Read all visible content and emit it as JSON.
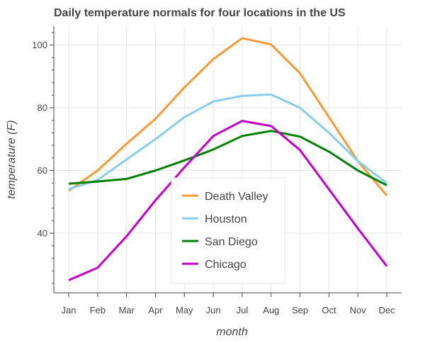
{
  "chart_data": {
    "type": "line",
    "title": "Daily temperature normals for four locations in the US",
    "xlabel": "month",
    "ylabel": "temperature (F)",
    "categories": [
      "Jan",
      "Feb",
      "Mar",
      "Apr",
      "May",
      "Jun",
      "Jul",
      "Aug",
      "Sep",
      "Oct",
      "Nov",
      "Dec"
    ],
    "ylim": [
      21,
      106
    ],
    "yticks": [
      40,
      60,
      80,
      100
    ],
    "grid": true,
    "legend_position": "bottom-center",
    "series": [
      {
        "name": "Death Valley",
        "color": "#f89a3a",
        "values": [
          53.5,
          60,
          68.5,
          76.5,
          86.5,
          95.5,
          102.2,
          100.2,
          91,
          77,
          63,
          52
        ]
      },
      {
        "name": "Houston",
        "color": "#87ceeb",
        "values": [
          54,
          57,
          63.5,
          70,
          77,
          82,
          83.8,
          84.2,
          80,
          72,
          63,
          56
        ]
      },
      {
        "name": "San Diego",
        "color": "#008000",
        "values": [
          55.8,
          56.5,
          57.3,
          60,
          63.2,
          66.7,
          71,
          72.6,
          70.8,
          66,
          60,
          55.3
        ]
      },
      {
        "name": "Chicago",
        "color": "#c000c8",
        "values": [
          25,
          29,
          39,
          50.5,
          61,
          71,
          75.8,
          74.2,
          66.5,
          54,
          41.5,
          29.5
        ]
      }
    ]
  }
}
